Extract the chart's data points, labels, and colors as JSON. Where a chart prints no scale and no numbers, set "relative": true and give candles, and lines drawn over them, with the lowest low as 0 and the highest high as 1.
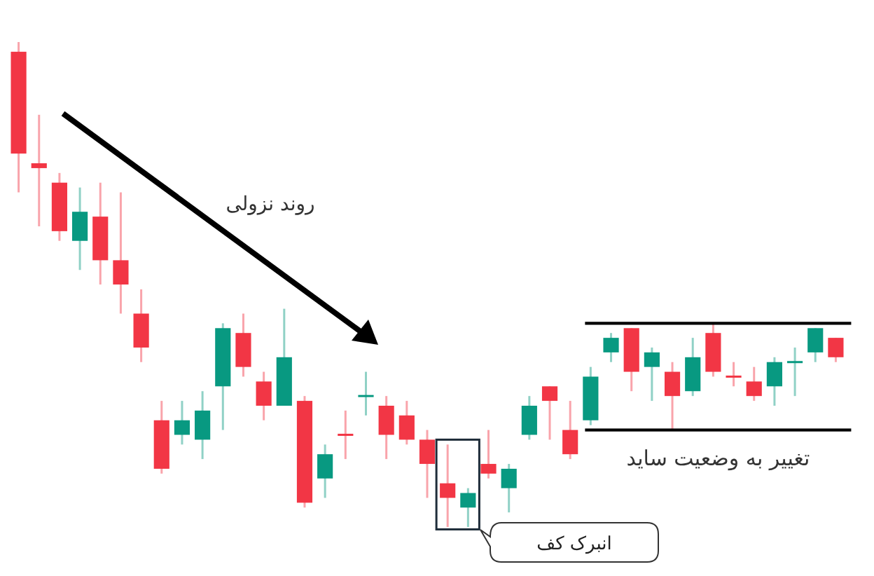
{
  "chart_data": {
    "type": "candlestick",
    "relative": true,
    "categories": [
      null,
      null,
      null,
      null,
      null,
      null,
      null,
      null,
      null,
      null,
      null,
      null,
      null,
      null,
      null,
      null,
      null,
      null,
      null,
      null,
      null,
      null,
      null,
      null,
      null,
      null,
      null,
      null,
      null,
      null,
      null,
      null,
      null,
      null,
      null,
      null,
      null,
      null,
      null,
      null,
      null
    ],
    "ohlc": [
      [
        0.98,
        1.0,
        0.69,
        0.77
      ],
      [
        0.75,
        0.85,
        0.62,
        0.74
      ],
      [
        0.71,
        0.73,
        0.59,
        0.61
      ],
      [
        0.59,
        0.7,
        0.53,
        0.65
      ],
      [
        0.64,
        0.71,
        0.5,
        0.55
      ],
      [
        0.55,
        0.69,
        0.44,
        0.5
      ],
      [
        0.44,
        0.49,
        0.34,
        0.37
      ],
      [
        0.22,
        0.26,
        0.11,
        0.12
      ],
      [
        0.19,
        0.26,
        0.17,
        0.22
      ],
      [
        0.18,
        0.28,
        0.14,
        0.24
      ],
      [
        0.29,
        0.42,
        0.2,
        0.41
      ],
      [
        0.4,
        0.44,
        0.31,
        0.33
      ],
      [
        0.3,
        0.32,
        0.22,
        0.25
      ],
      [
        0.25,
        0.45,
        0.25,
        0.35
      ],
      [
        0.26,
        0.27,
        0.04,
        0.05
      ],
      [
        0.1,
        0.17,
        0.06,
        0.15
      ],
      [
        0.19,
        0.24,
        0.14,
        0.19
      ],
      [
        0.27,
        0.32,
        0.23,
        0.27
      ],
      [
        0.25,
        0.27,
        0.14,
        0.19
      ],
      [
        0.23,
        0.26,
        0.17,
        0.18
      ],
      [
        0.18,
        0.2,
        0.06,
        0.13
      ],
      [
        0.09,
        0.17,
        0.0,
        0.06
      ],
      [
        0.04,
        0.08,
        0.0,
        0.07
      ],
      [
        0.13,
        0.2,
        0.1,
        0.11
      ],
      [
        0.08,
        0.13,
        0.03,
        0.12
      ],
      [
        0.19,
        0.27,
        0.18,
        0.25
      ],
      [
        0.29,
        0.29,
        0.18,
        0.26
      ],
      [
        0.2,
        0.26,
        0.14,
        0.15
      ],
      [
        0.22,
        0.33,
        0.21,
        0.31
      ],
      [
        0.36,
        0.4,
        0.34,
        0.39
      ],
      [
        0.41,
        0.41,
        0.28,
        0.32
      ],
      [
        0.33,
        0.37,
        0.26,
        0.36
      ],
      [
        0.32,
        0.34,
        0.2,
        0.27
      ],
      [
        0.28,
        0.39,
        0.27,
        0.35
      ],
      [
        0.4,
        0.42,
        0.31,
        0.32
      ],
      [
        0.31,
        0.34,
        0.29,
        0.31
      ],
      [
        0.3,
        0.33,
        0.26,
        0.27
      ],
      [
        0.29,
        0.35,
        0.25,
        0.34
      ],
      [
        0.34,
        0.37,
        0.27,
        0.34
      ],
      [
        0.36,
        0.41,
        0.34,
        0.41
      ],
      [
        0.39,
        0.39,
        0.34,
        0.35
      ]
    ],
    "colors": [
      "#f23645",
      "#f23645",
      "#f23645",
      "#089981",
      "#f23645",
      "#f23645",
      "#f23645",
      "#f23645",
      "#089981",
      "#089981",
      "#089981",
      "#f23645",
      "#f23645",
      "#089981",
      "#f23645",
      "#089981",
      "#f23645",
      "#089981",
      "#f23645",
      "#f23645",
      "#f23645",
      "#f23645",
      "#089981",
      "#f23645",
      "#089981",
      "#089981",
      "#f23645",
      "#f23645",
      "#089981",
      "#089981",
      "#f23645",
      "#089981",
      "#f23645",
      "#089981",
      "#f23645",
      "#f23645",
      "#f23645",
      "#089981",
      "#089981",
      "#089981",
      "#f23645"
    ],
    "ref_lines": [
      {
        "axis": "y",
        "value": 0.42,
        "label": null,
        "color": "#000000"
      },
      {
        "axis": "y",
        "value": 0.2,
        "label": "تغییر به وضعیت ساید",
        "color": "#000000"
      }
    ],
    "annotations": [
      "روند نزولی",
      "انبرک کف"
    ]
  }
}
